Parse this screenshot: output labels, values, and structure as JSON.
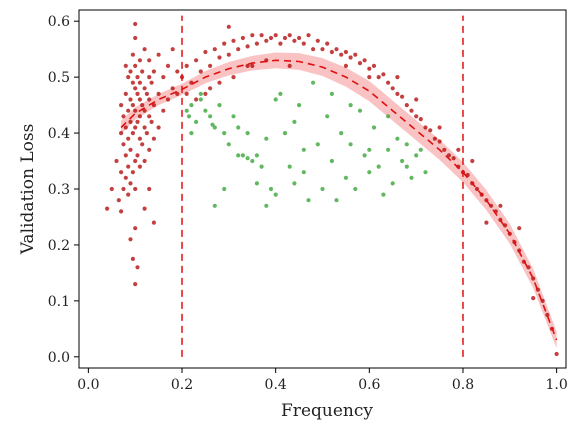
{
  "chart_data": {
    "type": "scatter",
    "xlabel": "Frequency",
    "ylabel": "Validation Loss",
    "xlim": [
      -0.02,
      1.02
    ],
    "ylim": [
      -0.02,
      0.62
    ],
    "xticks": [
      {
        "value": 0.0,
        "label": "0.0"
      },
      {
        "value": 0.2,
        "label": "0.2"
      },
      {
        "value": 0.4,
        "label": "0.4"
      },
      {
        "value": 0.6,
        "label": "0.6"
      },
      {
        "value": 0.8,
        "label": "0.8"
      },
      {
        "value": 1.0,
        "label": "1.0"
      }
    ],
    "yticks": [
      {
        "value": 0.0,
        "label": "0.0"
      },
      {
        "value": 0.1,
        "label": "0.1"
      },
      {
        "value": 0.2,
        "label": "0.2"
      },
      {
        "value": 0.3,
        "label": "0.3"
      },
      {
        "value": 0.4,
        "label": "0.4"
      },
      {
        "value": 0.5,
        "label": "0.5"
      },
      {
        "value": 0.6,
        "label": "0.6"
      }
    ],
    "grid": false,
    "vertical_lines": [
      {
        "x": 0.2,
        "y_range": [
          0.0,
          0.61
        ],
        "color": "#e01010",
        "style": "dashed"
      },
      {
        "x": 0.8,
        "y_range": [
          0.0,
          0.61
        ],
        "color": "#e01010",
        "style": "dashed"
      }
    ],
    "fit_curve": {
      "color": "#e01010",
      "style": "dashed",
      "band_color": "#f47a7a",
      "points": [
        [
          0.07,
          0.41
        ],
        [
          0.1,
          0.435
        ],
        [
          0.15,
          0.46
        ],
        [
          0.2,
          0.478
        ],
        [
          0.25,
          0.5
        ],
        [
          0.3,
          0.515
        ],
        [
          0.35,
          0.525
        ],
        [
          0.4,
          0.53
        ],
        [
          0.45,
          0.528
        ],
        [
          0.5,
          0.518
        ],
        [
          0.55,
          0.5
        ],
        [
          0.6,
          0.475
        ],
        [
          0.65,
          0.44
        ],
        [
          0.7,
          0.405
        ],
        [
          0.75,
          0.37
        ],
        [
          0.8,
          0.33
        ],
        [
          0.85,
          0.28
        ],
        [
          0.9,
          0.22
        ],
        [
          0.95,
          0.14
        ],
        [
          1.0,
          0.03
        ]
      ],
      "band_halfwidth": [
        0.012,
        0.011,
        0.01,
        0.01,
        0.011,
        0.012,
        0.013,
        0.014,
        0.015,
        0.016,
        0.017,
        0.018,
        0.018,
        0.018,
        0.018,
        0.018,
        0.018,
        0.018,
        0.017,
        0.015
      ]
    },
    "series": [
      {
        "color": "#b00000",
        "points": [
          [
            0.04,
            0.265
          ],
          [
            0.05,
            0.3
          ],
          [
            0.06,
            0.35
          ],
          [
            0.065,
            0.28
          ],
          [
            0.07,
            0.26
          ],
          [
            0.07,
            0.33
          ],
          [
            0.07,
            0.4
          ],
          [
            0.07,
            0.45
          ],
          [
            0.075,
            0.3
          ],
          [
            0.075,
            0.38
          ],
          [
            0.075,
            0.43
          ],
          [
            0.08,
            0.32
          ],
          [
            0.08,
            0.36
          ],
          [
            0.08,
            0.41
          ],
          [
            0.08,
            0.47
          ],
          [
            0.08,
            0.52
          ],
          [
            0.085,
            0.29
          ],
          [
            0.085,
            0.34
          ],
          [
            0.085,
            0.39
          ],
          [
            0.085,
            0.44
          ],
          [
            0.085,
            0.5
          ],
          [
            0.09,
            0.31
          ],
          [
            0.09,
            0.37
          ],
          [
            0.09,
            0.42
          ],
          [
            0.09,
            0.46
          ],
          [
            0.09,
            0.51
          ],
          [
            0.095,
            0.33
          ],
          [
            0.095,
            0.4
          ],
          [
            0.095,
            0.45
          ],
          [
            0.095,
            0.49
          ],
          [
            0.095,
            0.54
          ],
          [
            0.1,
            0.3
          ],
          [
            0.1,
            0.35
          ],
          [
            0.1,
            0.41
          ],
          [
            0.1,
            0.44
          ],
          [
            0.1,
            0.48
          ],
          [
            0.1,
            0.52
          ],
          [
            0.1,
            0.57
          ],
          [
            0.1,
            0.595
          ],
          [
            0.105,
            0.36
          ],
          [
            0.105,
            0.42
          ],
          [
            0.105,
            0.47
          ],
          [
            0.105,
            0.5
          ],
          [
            0.11,
            0.34
          ],
          [
            0.11,
            0.39
          ],
          [
            0.11,
            0.43
          ],
          [
            0.11,
            0.46
          ],
          [
            0.11,
            0.49
          ],
          [
            0.11,
            0.53
          ],
          [
            0.115,
            0.38
          ],
          [
            0.115,
            0.45
          ],
          [
            0.115,
            0.51
          ],
          [
            0.12,
            0.35
          ],
          [
            0.12,
            0.41
          ],
          [
            0.12,
            0.44
          ],
          [
            0.12,
            0.48
          ],
          [
            0.12,
            0.55
          ],
          [
            0.125,
            0.4
          ],
          [
            0.125,
            0.47
          ],
          [
            0.13,
            0.37
          ],
          [
            0.13,
            0.43
          ],
          [
            0.13,
            0.46
          ],
          [
            0.13,
            0.5
          ],
          [
            0.13,
            0.53
          ],
          [
            0.135,
            0.42
          ],
          [
            0.135,
            0.49
          ],
          [
            0.14,
            0.39
          ],
          [
            0.14,
            0.45
          ],
          [
            0.14,
            0.51
          ],
          [
            0.15,
            0.41
          ],
          [
            0.15,
            0.47
          ],
          [
            0.15,
            0.54
          ],
          [
            0.16,
            0.44
          ],
          [
            0.16,
            0.5
          ],
          [
            0.17,
            0.46
          ],
          [
            0.17,
            0.52
          ],
          [
            0.18,
            0.48
          ],
          [
            0.18,
            0.55
          ],
          [
            0.19,
            0.47
          ],
          [
            0.19,
            0.51
          ],
          [
            0.09,
            0.21
          ],
          [
            0.1,
            0.23
          ],
          [
            0.095,
            0.175
          ],
          [
            0.105,
            0.16
          ],
          [
            0.1,
            0.13
          ],
          [
            0.12,
            0.265
          ],
          [
            0.14,
            0.24
          ],
          [
            0.13,
            0.3
          ],
          [
            0.2,
            0.5
          ],
          [
            0.21,
            0.52
          ],
          [
            0.22,
            0.49
          ],
          [
            0.23,
            0.53
          ],
          [
            0.24,
            0.51
          ],
          [
            0.25,
            0.545
          ],
          [
            0.26,
            0.52
          ],
          [
            0.27,
            0.55
          ],
          [
            0.28,
            0.535
          ],
          [
            0.29,
            0.56
          ],
          [
            0.3,
            0.54
          ],
          [
            0.31,
            0.565
          ],
          [
            0.32,
            0.55
          ],
          [
            0.33,
            0.57
          ],
          [
            0.34,
            0.555
          ],
          [
            0.35,
            0.575
          ],
          [
            0.36,
            0.56
          ],
          [
            0.37,
            0.575
          ],
          [
            0.38,
            0.565
          ],
          [
            0.39,
            0.57
          ],
          [
            0.4,
            0.575
          ],
          [
            0.41,
            0.56
          ],
          [
            0.42,
            0.57
          ],
          [
            0.43,
            0.575
          ],
          [
            0.44,
            0.565
          ],
          [
            0.45,
            0.57
          ],
          [
            0.46,
            0.56
          ],
          [
            0.47,
            0.575
          ],
          [
            0.48,
            0.55
          ],
          [
            0.49,
            0.565
          ],
          [
            0.5,
            0.55
          ],
          [
            0.51,
            0.56
          ],
          [
            0.52,
            0.545
          ],
          [
            0.53,
            0.55
          ],
          [
            0.54,
            0.54
          ],
          [
            0.55,
            0.545
          ],
          [
            0.56,
            0.535
          ],
          [
            0.57,
            0.54
          ],
          [
            0.58,
            0.525
          ],
          [
            0.59,
            0.53
          ],
          [
            0.6,
            0.515
          ],
          [
            0.61,
            0.52
          ],
          [
            0.62,
            0.5
          ],
          [
            0.63,
            0.505
          ],
          [
            0.64,
            0.49
          ],
          [
            0.65,
            0.48
          ],
          [
            0.66,
            0.47
          ],
          [
            0.67,
            0.465
          ],
          [
            0.68,
            0.45
          ],
          [
            0.69,
            0.44
          ],
          [
            0.7,
            0.43
          ],
          [
            0.71,
            0.425
          ],
          [
            0.72,
            0.41
          ],
          [
            0.73,
            0.405
          ],
          [
            0.74,
            0.39
          ],
          [
            0.75,
            0.385
          ],
          [
            0.76,
            0.37
          ],
          [
            0.77,
            0.36
          ],
          [
            0.78,
            0.355
          ],
          [
            0.79,
            0.34
          ],
          [
            0.8,
            0.33
          ],
          [
            0.81,
            0.325
          ],
          [
            0.82,
            0.31
          ],
          [
            0.83,
            0.3
          ],
          [
            0.84,
            0.29
          ],
          [
            0.85,
            0.28
          ],
          [
            0.86,
            0.27
          ],
          [
            0.87,
            0.26
          ],
          [
            0.88,
            0.245
          ],
          [
            0.89,
            0.235
          ],
          [
            0.9,
            0.22
          ],
          [
            0.91,
            0.205
          ],
          [
            0.92,
            0.19
          ],
          [
            0.93,
            0.17
          ],
          [
            0.94,
            0.16
          ],
          [
            0.95,
            0.14
          ],
          [
            0.96,
            0.12
          ],
          [
            0.97,
            0.1
          ],
          [
            0.98,
            0.075
          ],
          [
            0.99,
            0.05
          ],
          [
            1.0,
            0.005
          ],
          [
            0.92,
            0.23
          ],
          [
            0.95,
            0.105
          ],
          [
            0.79,
            0.37
          ],
          [
            0.85,
            0.24
          ],
          [
            0.88,
            0.27
          ],
          [
            0.82,
            0.35
          ],
          [
            0.75,
            0.41
          ],
          [
            0.7,
            0.46
          ],
          [
            0.66,
            0.5
          ],
          [
            0.43,
            0.52
          ],
          [
            0.38,
            0.53
          ],
          [
            0.34,
            0.52
          ],
          [
            0.31,
            0.5
          ],
          [
            0.28,
            0.49
          ],
          [
            0.26,
            0.48
          ],
          [
            0.3,
            0.59
          ],
          [
            0.35,
            0.52
          ],
          [
            0.55,
            0.52
          ],
          [
            0.6,
            0.5
          ],
          [
            0.21,
            0.47
          ],
          [
            0.23,
            0.46
          ],
          [
            0.25,
            0.47
          ]
        ]
      },
      {
        "color": "#2ca02c",
        "points": [
          [
            0.21,
            0.44
          ],
          [
            0.215,
            0.43
          ],
          [
            0.22,
            0.45
          ],
          [
            0.23,
            0.42
          ],
          [
            0.24,
            0.46
          ],
          [
            0.25,
            0.44
          ],
          [
            0.26,
            0.43
          ],
          [
            0.265,
            0.415
          ],
          [
            0.27,
            0.41
          ],
          [
            0.28,
            0.45
          ],
          [
            0.29,
            0.4
          ],
          [
            0.3,
            0.38
          ],
          [
            0.31,
            0.43
          ],
          [
            0.32,
            0.41
          ],
          [
            0.33,
            0.36
          ],
          [
            0.34,
            0.355
          ],
          [
            0.35,
            0.35
          ],
          [
            0.36,
            0.36
          ],
          [
            0.37,
            0.34
          ],
          [
            0.38,
            0.39
          ],
          [
            0.39,
            0.3
          ],
          [
            0.4,
            0.29
          ],
          [
            0.41,
            0.47
          ],
          [
            0.42,
            0.4
          ],
          [
            0.43,
            0.34
          ],
          [
            0.44,
            0.31
          ],
          [
            0.45,
            0.45
          ],
          [
            0.46,
            0.33
          ],
          [
            0.47,
            0.28
          ],
          [
            0.48,
            0.49
          ],
          [
            0.49,
            0.38
          ],
          [
            0.5,
            0.3
          ],
          [
            0.51,
            0.43
          ],
          [
            0.52,
            0.35
          ],
          [
            0.53,
            0.28
          ],
          [
            0.54,
            0.4
          ],
          [
            0.55,
            0.32
          ],
          [
            0.56,
            0.38
          ],
          [
            0.57,
            0.3
          ],
          [
            0.58,
            0.44
          ],
          [
            0.59,
            0.36
          ],
          [
            0.6,
            0.33
          ],
          [
            0.61,
            0.41
          ],
          [
            0.62,
            0.34
          ],
          [
            0.63,
            0.29
          ],
          [
            0.64,
            0.37
          ],
          [
            0.65,
            0.31
          ],
          [
            0.66,
            0.39
          ],
          [
            0.67,
            0.35
          ],
          [
            0.68,
            0.38
          ],
          [
            0.69,
            0.32
          ],
          [
            0.7,
            0.36
          ],
          [
            0.71,
            0.37
          ],
          [
            0.72,
            0.33
          ],
          [
            0.27,
            0.27
          ],
          [
            0.29,
            0.3
          ],
          [
            0.32,
            0.36
          ],
          [
            0.34,
            0.4
          ],
          [
            0.36,
            0.31
          ],
          [
            0.38,
            0.27
          ],
          [
            0.4,
            0.46
          ],
          [
            0.44,
            0.42
          ],
          [
            0.46,
            0.37
          ],
          [
            0.52,
            0.47
          ],
          [
            0.56,
            0.45
          ],
          [
            0.6,
            0.37
          ],
          [
            0.64,
            0.43
          ],
          [
            0.68,
            0.34
          ],
          [
            0.24,
            0.47
          ],
          [
            0.22,
            0.4
          ]
        ]
      }
    ]
  }
}
